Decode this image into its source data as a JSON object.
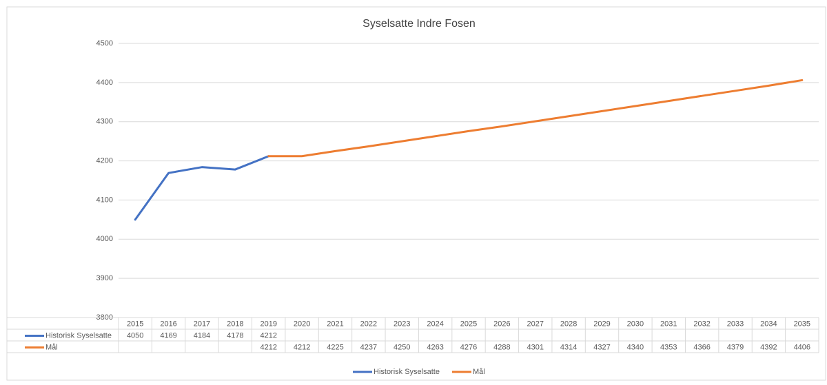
{
  "chart_data": {
    "type": "line",
    "title": "Syselsatte Indre Fosen",
    "categories": [
      "2015",
      "2016",
      "2017",
      "2018",
      "2019",
      "2020",
      "2021",
      "2022",
      "2023",
      "2024",
      "2025",
      "2026",
      "2027",
      "2028",
      "2029",
      "2030",
      "2031",
      "2032",
      "2033",
      "2034",
      "2035"
    ],
    "series": [
      {
        "name": "Historisk Syselsatte",
        "color": "#4472c4",
        "values": [
          4050,
          4169,
          4184,
          4178,
          4212,
          null,
          null,
          null,
          null,
          null,
          null,
          null,
          null,
          null,
          null,
          null,
          null,
          null,
          null,
          null,
          null
        ]
      },
      {
        "name": "Mål",
        "color": "#ed7d31",
        "values": [
          null,
          null,
          null,
          null,
          4212,
          4212,
          4225,
          4237,
          4250,
          4263,
          4276,
          4288,
          4301,
          4314,
          4327,
          4340,
          4353,
          4366,
          4379,
          4392,
          4406
        ]
      }
    ],
    "ylim": [
      3800,
      4500
    ],
    "yticks": [
      3800,
      3900,
      4000,
      4100,
      4200,
      4300,
      4400,
      4500
    ],
    "grid": true,
    "legend": "bottom",
    "data_table": true
  }
}
